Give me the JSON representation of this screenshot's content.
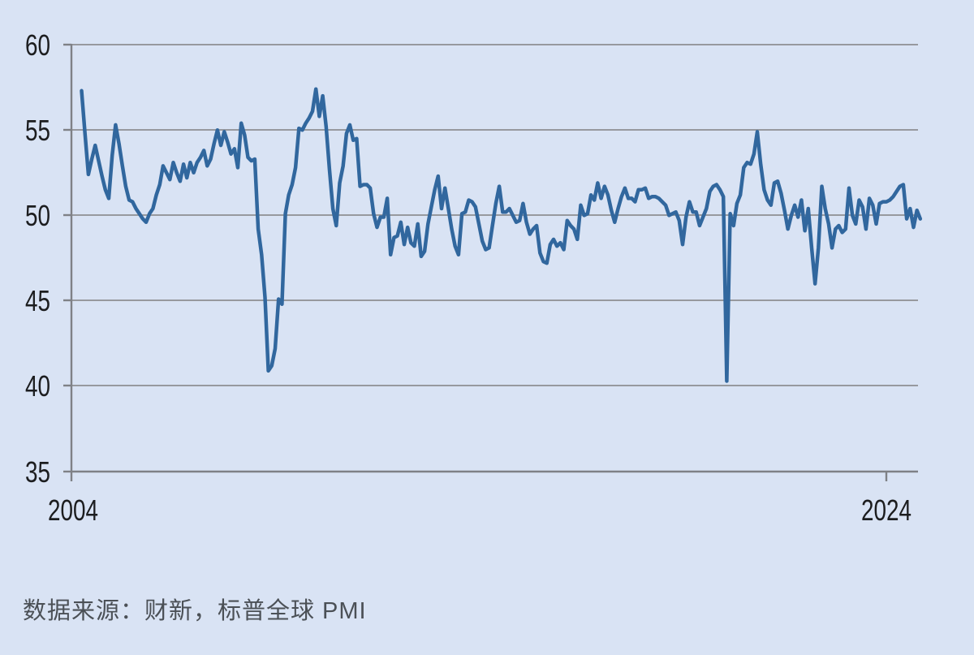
{
  "page": {
    "background_color": "#d9e3f4"
  },
  "caption": {
    "text": "数据来源：财新，标普全球 PMI"
  },
  "chart_data": {
    "type": "line",
    "title": "",
    "xlabel": "",
    "ylabel": "",
    "series_name": "PMI",
    "frequency": "monthly",
    "start_month": "2004-04",
    "end_month": "2024-11",
    "ylim": [
      35,
      60
    ],
    "y_ticks": [
      "60",
      "55",
      "50",
      "45",
      "40",
      "35"
    ],
    "x_ticks": [
      "2004",
      "2024"
    ],
    "grid": true,
    "legend_position": "none",
    "colors": {
      "background": "#d9e3f4",
      "line": "#31679e",
      "grid": "#97999e",
      "axis": "#7f8186",
      "tick_label": "#1c1d1f",
      "caption": "#4b5056"
    },
    "values": [
      57.3,
      54.8,
      52.4,
      53.3,
      54.1,
      53.2,
      52.3,
      51.5,
      51.0,
      53.5,
      55.3,
      54.2,
      52.9,
      51.7,
      50.9,
      50.8,
      50.4,
      50.1,
      49.8,
      49.6,
      50.1,
      50.4,
      51.2,
      51.8,
      52.9,
      52.5,
      52.1,
      53.1,
      52.5,
      52.0,
      53.0,
      52.2,
      53.1,
      52.5,
      53.1,
      53.4,
      53.8,
      52.9,
      53.3,
      54.2,
      55.0,
      54.1,
      54.9,
      54.3,
      53.6,
      53.9,
      52.8,
      55.4,
      54.7,
      53.4,
      53.2,
      53.3,
      49.2,
      47.7,
      45.2,
      40.9,
      41.2,
      42.2,
      45.1,
      44.8,
      50.1,
      51.2,
      51.8,
      52.8,
      55.1,
      55.0,
      55.4,
      55.7,
      56.1,
      57.4,
      55.8,
      57.0,
      55.2,
      52.7,
      50.4,
      49.4,
      51.9,
      52.9,
      54.8,
      55.3,
      54.4,
      54.5,
      51.7,
      51.8,
      51.8,
      51.6,
      50.1,
      49.3,
      49.9,
      49.9,
      51.0,
      47.7,
      48.7,
      48.8,
      49.6,
      48.3,
      49.3,
      48.4,
      48.2,
      49.5,
      47.6,
      47.9,
      49.5,
      50.5,
      51.5,
      52.3,
      50.4,
      51.6,
      50.4,
      49.2,
      48.2,
      47.7,
      50.1,
      50.2,
      50.9,
      50.8,
      50.5,
      49.5,
      48.5,
      48.0,
      48.1,
      49.4,
      50.7,
      51.7,
      50.2,
      50.2,
      50.4,
      50.0,
      49.6,
      49.7,
      50.7,
      49.6,
      48.9,
      49.2,
      49.4,
      47.8,
      47.3,
      47.2,
      48.3,
      48.6,
      48.2,
      48.4,
      48.0,
      49.7,
      49.4,
      49.2,
      48.6,
      50.6,
      50.0,
      50.1,
      51.2,
      50.9,
      51.9,
      51.0,
      51.7,
      51.2,
      50.3,
      49.6,
      50.4,
      51.1,
      51.6,
      51.0,
      51.0,
      50.8,
      51.5,
      51.5,
      51.6,
      51.0,
      51.1,
      51.1,
      51.0,
      50.8,
      50.6,
      50.0,
      50.1,
      50.2,
      49.7,
      48.3,
      49.9,
      50.8,
      50.2,
      50.2,
      49.4,
      49.9,
      50.4,
      51.4,
      51.7,
      51.8,
      51.5,
      51.1,
      40.3,
      50.1,
      49.4,
      50.7,
      51.2,
      52.8,
      53.1,
      53.0,
      53.6,
      54.9,
      53.0,
      51.5,
      50.9,
      50.6,
      51.9,
      52.0,
      51.3,
      50.3,
      49.2,
      50.0,
      50.6,
      49.9,
      50.9,
      49.1,
      50.4,
      48.1,
      46.0,
      48.1,
      51.7,
      50.4,
      49.5,
      48.1,
      49.2,
      49.4,
      49.0,
      49.2,
      51.6,
      50.0,
      49.5,
      50.9,
      50.5,
      49.2,
      51.0,
      50.6,
      49.5,
      50.7,
      50.8,
      50.8,
      50.9,
      51.1,
      51.4,
      51.7,
      51.8,
      49.8,
      50.4,
      49.3,
      50.3,
      49.8
    ]
  }
}
